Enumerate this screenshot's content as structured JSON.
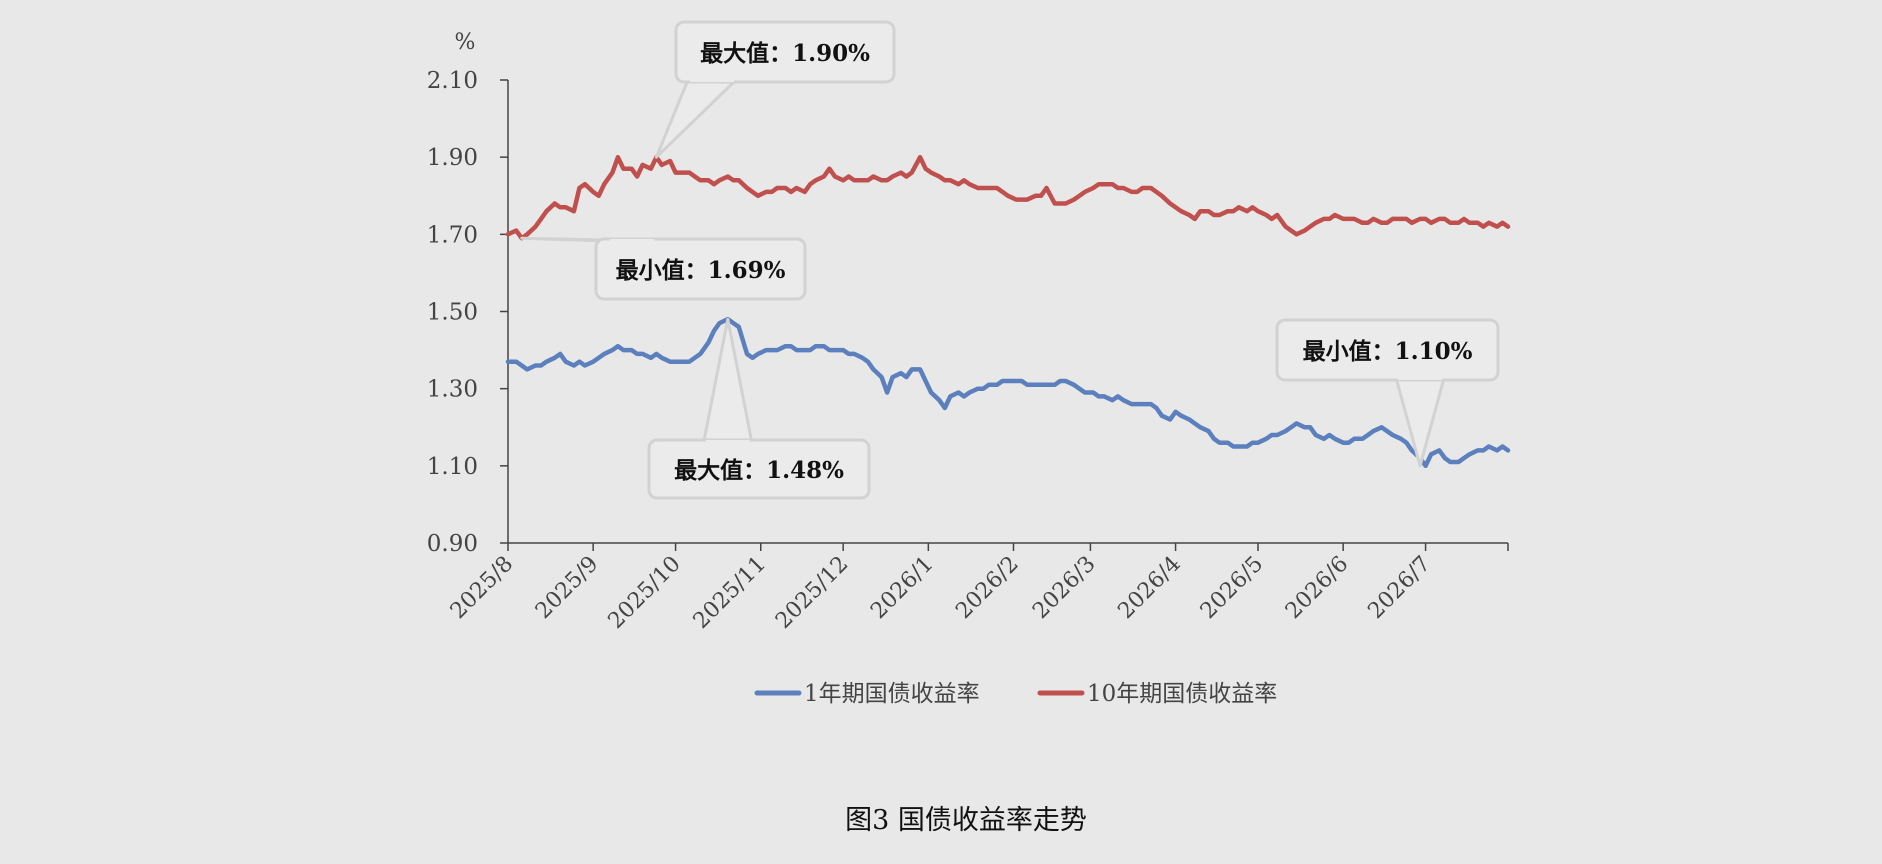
{
  "figure_caption": "图3 国债收益率走势",
  "colors": {
    "series_1y": "#5b80bd",
    "series_10y": "#c0504d",
    "background": "#e8e8e8",
    "axis": "#444444",
    "callout_border": "#d2d2d2",
    "callout_fill": "#ebebeb"
  },
  "chart_data": {
    "type": "line",
    "title": "",
    "xlabel": "",
    "ylabel": "%",
    "ylim": [
      0.9,
      2.1
    ],
    "yticks": [
      "0.90",
      "1.10",
      "1.30",
      "1.50",
      "1.70",
      "1.90",
      "2.10"
    ],
    "ytick_values": [
      0.9,
      1.1,
      1.3,
      1.5,
      1.7,
      1.9,
      2.1
    ],
    "xlim": [
      "2025-08-01",
      "2026-07-31"
    ],
    "x_tick_labels": [
      "2025/8",
      "2025/9",
      "2025/10",
      "2025/11",
      "2025/12",
      "2026/1",
      "2026/2",
      "2026/3",
      "2026/4",
      "2026/5",
      "2026/6",
      "2026/7"
    ],
    "x_tick_dates": [
      "2025-08-01",
      "2025-09-01",
      "2025-10-01",
      "2025-11-01",
      "2025-12-01",
      "2026-01-01",
      "2026-02-01",
      "2026-03-01",
      "2026-04-01",
      "2026-05-01",
      "2026-06-01",
      "2026-07-01"
    ],
    "grid": false,
    "legend_position": "bottom",
    "series": [
      {
        "name": "1年期国债收益率",
        "color": "#5b80bd",
        "x": [
          "2025-08-01",
          "2025-08-04",
          "2025-08-06",
          "2025-08-08",
          "2025-08-11",
          "2025-08-13",
          "2025-08-15",
          "2025-08-18",
          "2025-08-20",
          "2025-08-22",
          "2025-08-25",
          "2025-08-27",
          "2025-08-29",
          "2025-09-01",
          "2025-09-03",
          "2025-09-05",
          "2025-09-08",
          "2025-09-10",
          "2025-09-12",
          "2025-09-15",
          "2025-09-17",
          "2025-09-19",
          "2025-09-22",
          "2025-09-24",
          "2025-09-26",
          "2025-09-29",
          "2025-10-01",
          "2025-10-03",
          "2025-10-06",
          "2025-10-08",
          "2025-10-10",
          "2025-10-13",
          "2025-10-15",
          "2025-10-17",
          "2025-10-20",
          "2025-10-22",
          "2025-10-24",
          "2025-10-27",
          "2025-10-29",
          "2025-10-31",
          "2025-11-03",
          "2025-11-05",
          "2025-11-07",
          "2025-11-10",
          "2025-11-12",
          "2025-11-14",
          "2025-11-17",
          "2025-11-19",
          "2025-11-21",
          "2025-11-24",
          "2025-11-26",
          "2025-11-28",
          "2025-12-01",
          "2025-12-03",
          "2025-12-05",
          "2025-12-08",
          "2025-12-10",
          "2025-12-12",
          "2025-12-15",
          "2025-12-17",
          "2025-12-19",
          "2025-12-22",
          "2025-12-24",
          "2025-12-26",
          "2025-12-29",
          "2025-12-31",
          "2026-01-02",
          "2026-01-05",
          "2026-01-07",
          "2026-01-09",
          "2026-01-12",
          "2026-01-14",
          "2026-01-16",
          "2026-01-19",
          "2026-01-21",
          "2026-01-23",
          "2026-01-26",
          "2026-01-28",
          "2026-01-30",
          "2026-02-02",
          "2026-02-04",
          "2026-02-06",
          "2026-02-09",
          "2026-02-11",
          "2026-02-13",
          "2026-02-16",
          "2026-02-18",
          "2026-02-20",
          "2026-02-23",
          "2026-02-25",
          "2026-02-27",
          "2026-03-02",
          "2026-03-04",
          "2026-03-06",
          "2026-03-09",
          "2026-03-11",
          "2026-03-13",
          "2026-03-16",
          "2026-03-18",
          "2026-03-20",
          "2026-03-23",
          "2026-03-25",
          "2026-03-27",
          "2026-03-30",
          "2026-04-01",
          "2026-04-03",
          "2026-04-06",
          "2026-04-08",
          "2026-04-10",
          "2026-04-13",
          "2026-04-15",
          "2026-04-17",
          "2026-04-20",
          "2026-04-22",
          "2026-04-24",
          "2026-04-27",
          "2026-04-29",
          "2026-05-01",
          "2026-05-04",
          "2026-05-06",
          "2026-05-08",
          "2026-05-11",
          "2026-05-13",
          "2026-05-15",
          "2026-05-18",
          "2026-05-20",
          "2026-05-22",
          "2026-05-25",
          "2026-05-27",
          "2026-05-29",
          "2026-06-01",
          "2026-06-03",
          "2026-06-05",
          "2026-06-08",
          "2026-06-10",
          "2026-06-12",
          "2026-06-15",
          "2026-06-17",
          "2026-06-19",
          "2026-06-22",
          "2026-06-24",
          "2026-06-26",
          "2026-06-29",
          "2026-07-01",
          "2026-07-03",
          "2026-07-06",
          "2026-07-08",
          "2026-07-10",
          "2026-07-13",
          "2026-07-15",
          "2026-07-17",
          "2026-07-20",
          "2026-07-22",
          "2026-07-24",
          "2026-07-27",
          "2026-07-29",
          "2026-07-31"
        ],
        "values": [
          1.37,
          1.37,
          1.36,
          1.35,
          1.36,
          1.36,
          1.37,
          1.38,
          1.39,
          1.37,
          1.36,
          1.37,
          1.36,
          1.37,
          1.38,
          1.39,
          1.4,
          1.41,
          1.4,
          1.4,
          1.39,
          1.39,
          1.38,
          1.39,
          1.38,
          1.37,
          1.37,
          1.37,
          1.37,
          1.38,
          1.39,
          1.42,
          1.45,
          1.47,
          1.48,
          1.47,
          1.46,
          1.39,
          1.38,
          1.39,
          1.4,
          1.4,
          1.4,
          1.41,
          1.41,
          1.4,
          1.4,
          1.4,
          1.41,
          1.41,
          1.4,
          1.4,
          1.4,
          1.39,
          1.39,
          1.38,
          1.37,
          1.35,
          1.33,
          1.29,
          1.33,
          1.34,
          1.33,
          1.35,
          1.35,
          1.32,
          1.29,
          1.27,
          1.25,
          1.28,
          1.29,
          1.28,
          1.29,
          1.3,
          1.3,
          1.31,
          1.31,
          1.32,
          1.32,
          1.32,
          1.32,
          1.31,
          1.31,
          1.31,
          1.31,
          1.31,
          1.32,
          1.32,
          1.31,
          1.3,
          1.29,
          1.29,
          1.28,
          1.28,
          1.27,
          1.28,
          1.27,
          1.26,
          1.26,
          1.26,
          1.26,
          1.25,
          1.23,
          1.22,
          1.24,
          1.23,
          1.22,
          1.21,
          1.2,
          1.19,
          1.17,
          1.16,
          1.16,
          1.15,
          1.15,
          1.15,
          1.16,
          1.16,
          1.17,
          1.18,
          1.18,
          1.19,
          1.2,
          1.21,
          1.2,
          1.2,
          1.18,
          1.17,
          1.18,
          1.17,
          1.16,
          1.16,
          1.17,
          1.17,
          1.18,
          1.19,
          1.2,
          1.19,
          1.18,
          1.17,
          1.16,
          1.14,
          1.12,
          1.1,
          1.13,
          1.14,
          1.12,
          1.11,
          1.11,
          1.12,
          1.13,
          1.14,
          1.14,
          1.15,
          1.14,
          1.15,
          1.14
        ]
      },
      {
        "name": "10年期国债收益率",
        "color": "#c0504d",
        "x": [
          "2025-08-01",
          "2025-08-04",
          "2025-08-06",
          "2025-08-08",
          "2025-08-11",
          "2025-08-13",
          "2025-08-15",
          "2025-08-18",
          "2025-08-20",
          "2025-08-22",
          "2025-08-25",
          "2025-08-27",
          "2025-08-29",
          "2025-09-01",
          "2025-09-03",
          "2025-09-05",
          "2025-09-08",
          "2025-09-10",
          "2025-09-12",
          "2025-09-15",
          "2025-09-17",
          "2025-09-19",
          "2025-09-22",
          "2025-09-24",
          "2025-09-26",
          "2025-09-29",
          "2025-10-01",
          "2025-10-03",
          "2025-10-06",
          "2025-10-08",
          "2025-10-10",
          "2025-10-13",
          "2025-10-15",
          "2025-10-17",
          "2025-10-20",
          "2025-10-22",
          "2025-10-24",
          "2025-10-27",
          "2025-10-29",
          "2025-10-31",
          "2025-11-03",
          "2025-11-05",
          "2025-11-07",
          "2025-11-10",
          "2025-11-12",
          "2025-11-14",
          "2025-11-17",
          "2025-11-19",
          "2025-11-21",
          "2025-11-24",
          "2025-11-26",
          "2025-11-28",
          "2025-12-01",
          "2025-12-03",
          "2025-12-05",
          "2025-12-08",
          "2025-12-10",
          "2025-12-12",
          "2025-12-15",
          "2025-12-17",
          "2025-12-19",
          "2025-12-22",
          "2025-12-24",
          "2025-12-26",
          "2025-12-29",
          "2025-12-31",
          "2026-01-02",
          "2026-01-05",
          "2026-01-07",
          "2026-01-09",
          "2026-01-12",
          "2026-01-14",
          "2026-01-16",
          "2026-01-19",
          "2026-01-21",
          "2026-01-23",
          "2026-01-26",
          "2026-01-28",
          "2026-01-30",
          "2026-02-02",
          "2026-02-04",
          "2026-02-06",
          "2026-02-09",
          "2026-02-11",
          "2026-02-13",
          "2026-02-16",
          "2026-02-18",
          "2026-02-20",
          "2026-02-23",
          "2026-02-25",
          "2026-02-27",
          "2026-03-02",
          "2026-03-04",
          "2026-03-06",
          "2026-03-09",
          "2026-03-11",
          "2026-03-13",
          "2026-03-16",
          "2026-03-18",
          "2026-03-20",
          "2026-03-23",
          "2026-03-25",
          "2026-03-27",
          "2026-03-30",
          "2026-04-01",
          "2026-04-03",
          "2026-04-06",
          "2026-04-08",
          "2026-04-10",
          "2026-04-13",
          "2026-04-15",
          "2026-04-17",
          "2026-04-20",
          "2026-04-22",
          "2026-04-24",
          "2026-04-27",
          "2026-04-29",
          "2026-05-01",
          "2026-05-04",
          "2026-05-06",
          "2026-05-08",
          "2026-05-11",
          "2026-05-13",
          "2026-05-15",
          "2026-05-18",
          "2026-05-20",
          "2026-05-22",
          "2026-05-25",
          "2026-05-27",
          "2026-05-29",
          "2026-06-01",
          "2026-06-03",
          "2026-06-05",
          "2026-06-08",
          "2026-06-10",
          "2026-06-12",
          "2026-06-15",
          "2026-06-17",
          "2026-06-19",
          "2026-06-22",
          "2026-06-24",
          "2026-06-26",
          "2026-06-29",
          "2026-07-01",
          "2026-07-03",
          "2026-07-06",
          "2026-07-08",
          "2026-07-10",
          "2026-07-13",
          "2026-07-15",
          "2026-07-17",
          "2026-07-20",
          "2026-07-22",
          "2026-07-24",
          "2026-07-27",
          "2026-07-29",
          "2026-07-31"
        ],
        "values": [
          1.7,
          1.71,
          1.69,
          1.7,
          1.72,
          1.74,
          1.76,
          1.78,
          1.77,
          1.77,
          1.76,
          1.82,
          1.83,
          1.81,
          1.8,
          1.83,
          1.86,
          1.9,
          1.87,
          1.87,
          1.85,
          1.88,
          1.87,
          1.9,
          1.88,
          1.89,
          1.86,
          1.86,
          1.86,
          1.85,
          1.84,
          1.84,
          1.83,
          1.84,
          1.85,
          1.84,
          1.84,
          1.82,
          1.81,
          1.8,
          1.81,
          1.81,
          1.82,
          1.82,
          1.81,
          1.82,
          1.81,
          1.83,
          1.84,
          1.85,
          1.87,
          1.85,
          1.84,
          1.85,
          1.84,
          1.84,
          1.84,
          1.85,
          1.84,
          1.84,
          1.85,
          1.86,
          1.85,
          1.86,
          1.9,
          1.87,
          1.86,
          1.85,
          1.84,
          1.84,
          1.83,
          1.84,
          1.83,
          1.82,
          1.82,
          1.82,
          1.82,
          1.81,
          1.8,
          1.79,
          1.79,
          1.79,
          1.8,
          1.8,
          1.82,
          1.78,
          1.78,
          1.78,
          1.79,
          1.8,
          1.81,
          1.82,
          1.83,
          1.83,
          1.83,
          1.82,
          1.82,
          1.81,
          1.81,
          1.82,
          1.82,
          1.81,
          1.8,
          1.78,
          1.77,
          1.76,
          1.75,
          1.74,
          1.76,
          1.76,
          1.75,
          1.75,
          1.76,
          1.76,
          1.77,
          1.76,
          1.77,
          1.76,
          1.75,
          1.74,
          1.75,
          1.72,
          1.71,
          1.7,
          1.71,
          1.72,
          1.73,
          1.74,
          1.74,
          1.75,
          1.74,
          1.74,
          1.74,
          1.73,
          1.73,
          1.74,
          1.73,
          1.73,
          1.74,
          1.74,
          1.74,
          1.73,
          1.74,
          1.74,
          1.73,
          1.74,
          1.74,
          1.73,
          1.73,
          1.74,
          1.73,
          1.73,
          1.72,
          1.73,
          1.72,
          1.73,
          1.72
        ]
      }
    ],
    "annotations": [
      {
        "text": "最大值：1.90%",
        "series": "10年期国债收益率",
        "x": "2025-09-24",
        "y": 1.9
      },
      {
        "text": "最小值：1.69%",
        "series": "10年期国债收益率",
        "x": "2025-08-06",
        "y": 1.69
      },
      {
        "text": "最大值：1.48%",
        "series": "1年期国债收益率",
        "x": "2025-10-20",
        "y": 1.48
      },
      {
        "text": "最小值：1.10%",
        "series": "1年期国债收益率",
        "x": "2026-06-29",
        "y": 1.1
      }
    ]
  }
}
